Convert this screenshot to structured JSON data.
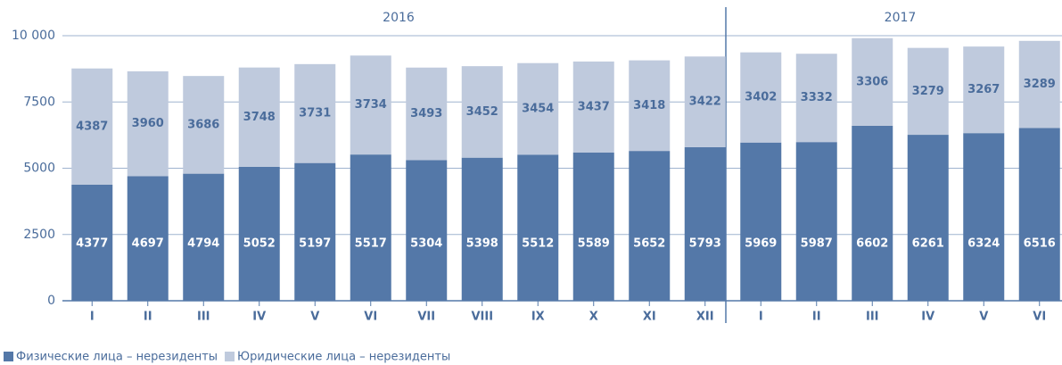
{
  "chart_data": {
    "type": "stacked_bar",
    "groups": [
      {
        "name": "2016",
        "categories": [
          "I",
          "II",
          "III",
          "IV",
          "V",
          "VI",
          "VII",
          "VIII",
          "IX",
          "X",
          "XI",
          "XII"
        ]
      },
      {
        "name": "2017",
        "categories": [
          "I",
          "II",
          "III",
          "IV",
          "V",
          "VI"
        ]
      }
    ],
    "series": [
      {
        "name": "Физические лица – нерезиденты",
        "color": "#5478a8",
        "values": [
          4377,
          4697,
          4794,
          5052,
          5197,
          5517,
          5304,
          5398,
          5512,
          5589,
          5652,
          5793,
          5969,
          5987,
          6602,
          6261,
          6324,
          6516
        ]
      },
      {
        "name": "Юридические лица – нерезиденты",
        "color": "#bfcadd",
        "values": [
          4387,
          3960,
          3686,
          3748,
          3731,
          3734,
          3493,
          3452,
          3454,
          3437,
          3418,
          3422,
          3402,
          3332,
          3306,
          3279,
          3267,
          3289
        ]
      }
    ],
    "ylim": [
      0,
      10000
    ],
    "yticks": [
      0,
      2500,
      5000,
      7500,
      {
        "value": 10000,
        "label": "10 000"
      }
    ],
    "grid": true
  }
}
